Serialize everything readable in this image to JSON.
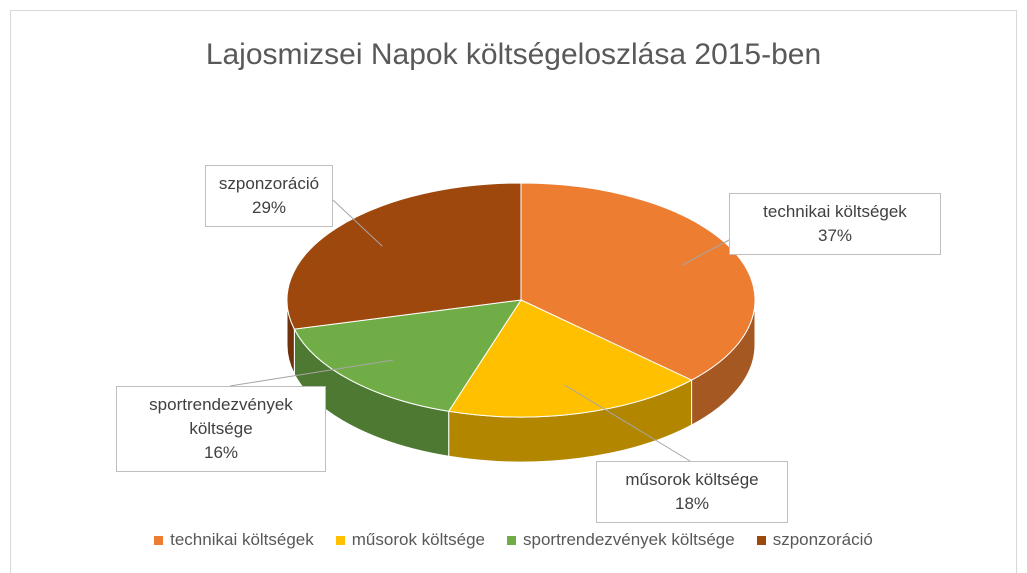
{
  "chart_data": {
    "type": "pie",
    "title": "Lajosmizsei Napok költségeloszlása 2015-ben",
    "categories": [
      "technikai költségek",
      "műsorok költsége",
      "sportrendezvények költsége",
      "szponzoráció"
    ],
    "values": [
      37,
      18,
      16,
      29
    ],
    "value_labels": [
      "37%",
      "18%",
      "16%",
      "29%"
    ],
    "colors": [
      "#ed7d31",
      "#ffc000",
      "#70ad47",
      "#9e480e"
    ],
    "legend": "bottom"
  }
}
